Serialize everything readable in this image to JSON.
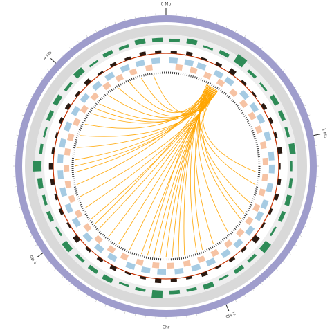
{
  "chart_data": {
    "type": "circos",
    "xlim": [
      0,
      4.6
    ],
    "xticks": [
      {
        "value": 0,
        "label": "0 Mb"
      },
      {
        "value": 1,
        "label": "1 Mb"
      },
      {
        "value": 2,
        "label": "2 Mb"
      },
      {
        "value": 3,
        "label": "3 Mb"
      },
      {
        "value": 4,
        "label": "4 Mb"
      }
    ],
    "minor_tick_step": 0.05,
    "xlabel": "Chr",
    "ring_color": "#9f9dcc",
    "coverage": {
      "color": "#2e8b57",
      "values": [
        0.3,
        0.5,
        0.2,
        0.4,
        0.9,
        0.3,
        0.2,
        0.5,
        0.4,
        0.3,
        0.6,
        0.2,
        0.3,
        0.5,
        0.4,
        0.2,
        0.7,
        0.3,
        0.4,
        0.2,
        0.5,
        0.3,
        0.4,
        0.8,
        0.3,
        0.2,
        0.5,
        0.4,
        0.3,
        0.6,
        0.2,
        0.4,
        0.3,
        0.5,
        0.9,
        0.3,
        0.2,
        0.4,
        0.5,
        0.3,
        0.6,
        0.2,
        0.4,
        0.3,
        0.5,
        0.4
      ]
    },
    "gc": {
      "color": "#c83200",
      "values": [
        0.4,
        0.6,
        0.3,
        0.5,
        0.8,
        0.4,
        0.3,
        0.6,
        0.5,
        0.4,
        0.7,
        0.3,
        0.5,
        0.6,
        0.4,
        0.3,
        0.9,
        0.4,
        0.5,
        0.3,
        0.6,
        0.4,
        0.5,
        0.7,
        0.4,
        0.3,
        0.6,
        0.5,
        0.4,
        0.8,
        0.3,
        0.5,
        0.4,
        0.6,
        0.7,
        0.4,
        0.3,
        0.5,
        0.6,
        0.4,
        0.7,
        0.3,
        0.5,
        0.4,
        0.6,
        0.5
      ]
    },
    "genes_plus": {
      "color": "#a6cbe3",
      "width": 0.06,
      "starts": [
        0.02,
        0.13,
        0.22,
        0.35,
        0.44,
        0.58,
        0.69,
        0.78,
        0.91,
        1.05,
        1.14,
        1.27,
        1.39,
        1.48,
        1.6,
        1.72,
        1.83,
        1.95,
        2.06,
        2.18,
        2.3,
        2.41,
        2.52,
        2.66,
        2.77,
        2.88,
        3.01,
        3.12,
        3.24,
        3.36,
        3.47,
        3.58,
        3.7,
        3.82,
        3.93,
        4.05,
        4.16,
        4.28,
        4.39,
        4.5
      ]
    },
    "genes_minus": {
      "color": "#f6c3a4",
      "width": 0.05,
      "starts": [
        0.07,
        0.18,
        0.29,
        0.4,
        0.52,
        0.63,
        0.74,
        0.85,
        0.97,
        1.09,
        1.21,
        1.32,
        1.44,
        1.55,
        1.66,
        1.78,
        1.9,
        2.01,
        2.12,
        2.24,
        2.35,
        2.47,
        2.59,
        2.7,
        2.82,
        2.94,
        3.06,
        3.18,
        3.29,
        3.41,
        3.53,
        3.64,
        3.76,
        3.87,
        3.99,
        4.11,
        4.22,
        4.33,
        4.45
      ]
    },
    "links": {
      "color": "#ffa500",
      "source": [
        0.34,
        0.35,
        0.36,
        0.36,
        0.37,
        0.37,
        0.38,
        0.38,
        0.39,
        0.39,
        0.4,
        0.4,
        0.41,
        0.41,
        0.42,
        0.42,
        0.43,
        0.43,
        0.44,
        0.44,
        0.35,
        0.37,
        0.39,
        0.41,
        0.43,
        0.36,
        0.38,
        0.4,
        0.42,
        0.44,
        0.35,
        0.37,
        0.39,
        0.41,
        0.43,
        0.36,
        0.38,
        0.4,
        0.42,
        0.44
      ],
      "target": [
        1.3,
        1.45,
        1.6,
        1.75,
        1.9,
        2.05,
        2.15,
        2.2,
        2.25,
        2.3,
        2.35,
        2.4,
        2.5,
        2.6,
        2.7,
        2.8,
        2.9,
        3.0,
        3.1,
        3.2,
        3.3,
        3.4,
        3.5,
        3.6,
        3.7,
        3.8,
        3.9,
        4.0,
        4.1,
        4.2,
        4.3,
        4.4,
        1.2,
        1.55,
        2.0,
        2.45,
        2.95,
        3.45,
        3.95,
        4.5
      ]
    }
  }
}
